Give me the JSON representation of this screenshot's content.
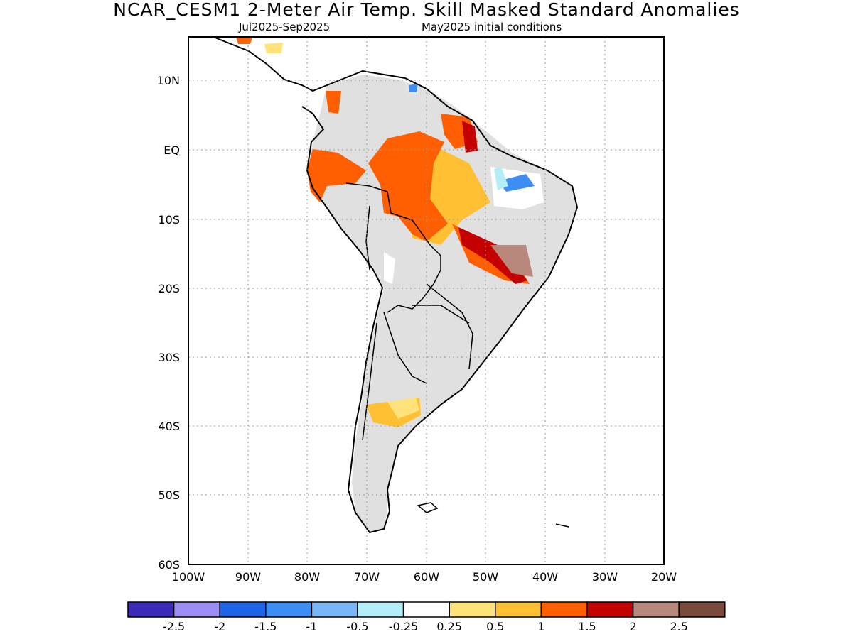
{
  "title": "NCAR_CESM1 2-Meter Air Temp. Skill Masked Standard Anomalies",
  "subtitle_left": "Jul2025-Sep2025",
  "subtitle_right": "May2025 initial conditions",
  "lat_labels": [
    "10N",
    "EQ",
    "10S",
    "20S",
    "30S",
    "40S",
    "50S",
    "60S"
  ],
  "lon_labels": [
    "100W",
    "90W",
    "80W",
    "70W",
    "60W",
    "50W",
    "40W",
    "30W",
    "20W"
  ],
  "colorbar": {
    "colors": [
      "#3b2bb8",
      "#9d8ef4",
      "#1f63e6",
      "#3c8ef5",
      "#78b6f7",
      "#b3eef8",
      "#ffffff",
      "#ffe27a",
      "#ffc033",
      "#ff5f00",
      "#c40000",
      "#b7887b",
      "#7a4b3c"
    ],
    "labels": [
      "-2.5",
      "-2",
      "-1.5",
      "-1",
      "-0.5",
      "-0.25",
      "0.25",
      "0.5",
      "1",
      "1.5",
      "2",
      "2.5"
    ]
  },
  "colors": {
    "land_mask": "#e0e0e0",
    "frame": "#000000",
    "grid": "#999999"
  }
}
